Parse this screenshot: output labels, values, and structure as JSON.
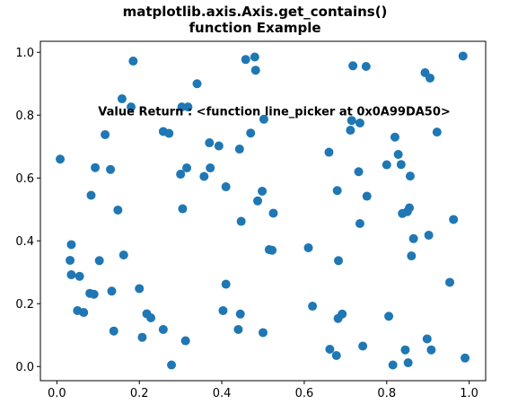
{
  "chart_data": {
    "type": "scatter",
    "title_lines": [
      "matplotlib.axis.Axis.get_contains()",
      "function Example"
    ],
    "xlabel": "",
    "ylabel": "",
    "xlim": [
      -0.04,
      1.04
    ],
    "ylim": [
      -0.045,
      1.035
    ],
    "xticks": [
      0.0,
      0.2,
      0.4,
      0.6,
      0.8,
      1.0
    ],
    "xtick_labels": [
      "0.0",
      "0.2",
      "0.4",
      "0.6",
      "0.8",
      "1.0"
    ],
    "yticks": [
      0.0,
      0.2,
      0.4,
      0.6,
      0.8,
      1.0
    ],
    "ytick_labels": [
      "0.0",
      "0.2",
      "0.4",
      "0.6",
      "0.8",
      "1.0"
    ],
    "grid": false,
    "legend": "none",
    "marker_color": "#1f77b4",
    "annotation": {
      "text": "Value Return : <function line_picker at 0x0A99DA50>",
      "x": 0.1,
      "y": 0.8
    },
    "points": [
      [
        0.008,
        0.66
      ],
      [
        0.035,
        0.388
      ],
      [
        0.032,
        0.338
      ],
      [
        0.035,
        0.292
      ],
      [
        0.05,
        0.178
      ],
      [
        0.055,
        0.287
      ],
      [
        0.065,
        0.172
      ],
      [
        0.08,
        0.233
      ],
      [
        0.083,
        0.545
      ],
      [
        0.09,
        0.23
      ],
      [
        0.093,
        0.633
      ],
      [
        0.103,
        0.337
      ],
      [
        0.117,
        0.738
      ],
      [
        0.13,
        0.627
      ],
      [
        0.133,
        0.24
      ],
      [
        0.138,
        0.113
      ],
      [
        0.148,
        0.498
      ],
      [
        0.158,
        0.852
      ],
      [
        0.162,
        0.355
      ],
      [
        0.18,
        0.826
      ],
      [
        0.185,
        0.972
      ],
      [
        0.2,
        0.248
      ],
      [
        0.207,
        0.093
      ],
      [
        0.218,
        0.168
      ],
      [
        0.228,
        0.155
      ],
      [
        0.258,
        0.118
      ],
      [
        0.258,
        0.748
      ],
      [
        0.272,
        0.742
      ],
      [
        0.278,
        0.005
      ],
      [
        0.3,
        0.612
      ],
      [
        0.303,
        0.826
      ],
      [
        0.305,
        0.502
      ],
      [
        0.312,
        0.082
      ],
      [
        0.315,
        0.632
      ],
      [
        0.318,
        0.826
      ],
      [
        0.34,
        0.9
      ],
      [
        0.357,
        0.605
      ],
      [
        0.37,
        0.712
      ],
      [
        0.372,
        0.632
      ],
      [
        0.393,
        0.702
      ],
      [
        0.403,
        0.178
      ],
      [
        0.41,
        0.262
      ],
      [
        0.41,
        0.572
      ],
      [
        0.44,
        0.118
      ],
      [
        0.443,
        0.692
      ],
      [
        0.445,
        0.167
      ],
      [
        0.447,
        0.462
      ],
      [
        0.458,
        0.977
      ],
      [
        0.47,
        0.743
      ],
      [
        0.48,
        0.985
      ],
      [
        0.482,
        0.943
      ],
      [
        0.487,
        0.527
      ],
      [
        0.498,
        0.558
      ],
      [
        0.5,
        0.108
      ],
      [
        0.502,
        0.787
      ],
      [
        0.515,
        0.372
      ],
      [
        0.522,
        0.37
      ],
      [
        0.525,
        0.488
      ],
      [
        0.61,
        0.378
      ],
      [
        0.62,
        0.192
      ],
      [
        0.66,
        0.682
      ],
      [
        0.662,
        0.055
      ],
      [
        0.678,
        0.035
      ],
      [
        0.68,
        0.56
      ],
      [
        0.682,
        0.153
      ],
      [
        0.683,
        0.337
      ],
      [
        0.692,
        0.167
      ],
      [
        0.712,
        0.752
      ],
      [
        0.715,
        0.783
      ],
      [
        0.718,
        0.957
      ],
      [
        0.732,
        0.62
      ],
      [
        0.735,
        0.775
      ],
      [
        0.735,
        0.455
      ],
      [
        0.742,
        0.065
      ],
      [
        0.75,
        0.955
      ],
      [
        0.752,
        0.542
      ],
      [
        0.8,
        0.642
      ],
      [
        0.805,
        0.16
      ],
      [
        0.815,
        0.005
      ],
      [
        0.82,
        0.73
      ],
      [
        0.828,
        0.675
      ],
      [
        0.835,
        0.643
      ],
      [
        0.838,
        0.487
      ],
      [
        0.845,
        0.053
      ],
      [
        0.85,
        0.493
      ],
      [
        0.852,
        0.012
      ],
      [
        0.855,
        0.505
      ],
      [
        0.857,
        0.606
      ],
      [
        0.86,
        0.352
      ],
      [
        0.865,
        0.407
      ],
      [
        0.893,
        0.935
      ],
      [
        0.898,
        0.088
      ],
      [
        0.902,
        0.418
      ],
      [
        0.905,
        0.918
      ],
      [
        0.908,
        0.053
      ],
      [
        0.922,
        0.746
      ],
      [
        0.953,
        0.268
      ],
      [
        0.962,
        0.468
      ],
      [
        0.985,
        0.988
      ],
      [
        0.99,
        0.027
      ]
    ]
  }
}
